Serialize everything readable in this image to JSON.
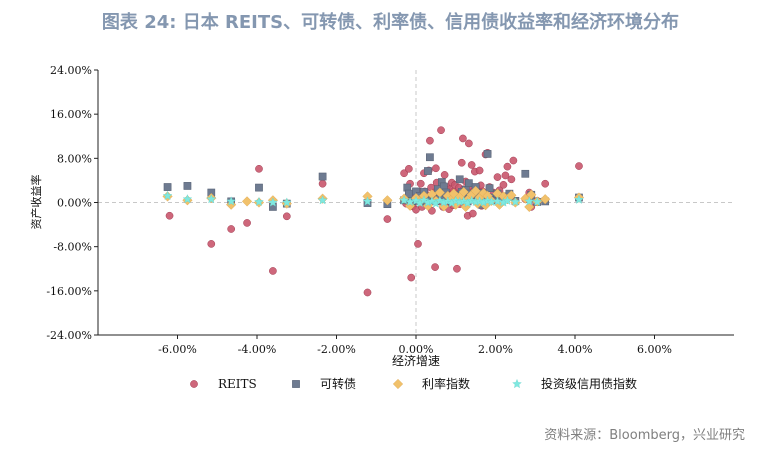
{
  "title": "图表 24: 日本 REITS、可转债、利率债、信用债收益率和经济环境分布",
  "source": "资料来源：Bloomberg，兴业研究",
  "chart_data": {
    "type": "scatter",
    "xlabel": "经济增速",
    "ylabel": "资产收益率",
    "xlim": [
      -0.08,
      0.08
    ],
    "ylim": [
      -0.24,
      0.24
    ],
    "x_ticks": [
      -0.06,
      -0.04,
      -0.02,
      0.0,
      0.02,
      0.04,
      0.06
    ],
    "x_tick_labels": [
      "-6.00%",
      "-4.00%",
      "-2.00%",
      "0.00%",
      "2.00%",
      "4.00%",
      "6.00%"
    ],
    "y_ticks": [
      -0.24,
      -0.16,
      -0.08,
      0.0,
      0.08,
      0.16,
      0.24
    ],
    "y_tick_labels": [
      "-24.00%",
      "-16.00%",
      "-8.00%",
      "0.00%",
      "8.00%",
      "16.00%",
      "24.00%"
    ],
    "legend_position": "bottom",
    "series": [
      {
        "name": "REITS",
        "marker": "circle",
        "color": "#c9566d",
        "points": [
          [
            -0.062,
            -0.024
          ],
          [
            -0.0515,
            -0.075
          ],
          [
            -0.0465,
            -0.048
          ],
          [
            -0.0425,
            -0.037
          ],
          [
            -0.0395,
            0.061
          ],
          [
            -0.036,
            -0.124
          ],
          [
            -0.0325,
            -0.025
          ],
          [
            -0.0235,
            0.034
          ],
          [
            -0.0122,
            -0.163
          ],
          [
            -0.0072,
            -0.03
          ],
          [
            -0.003,
            0.053
          ],
          [
            -0.0025,
            -0.002
          ],
          [
            -0.0018,
            0.061
          ],
          [
            -0.0015,
            0.034
          ],
          [
            -0.001,
            0.011
          ],
          [
            -0.0008,
            -0.007
          ],
          [
            -0.0005,
            0.013
          ],
          [
            0.0,
            -0.013
          ],
          [
            0.0005,
            -0.075
          ],
          [
            -0.0012,
            -0.136
          ],
          [
            0.0008,
            0.02
          ],
          [
            0.001,
            0.005
          ],
          [
            0.0012,
            0.034
          ],
          [
            0.0015,
            -0.008
          ],
          [
            0.002,
            0.053
          ],
          [
            0.0022,
            0.02
          ],
          [
            0.0025,
            0.003
          ],
          [
            0.003,
            0.012
          ],
          [
            0.0032,
            0.058
          ],
          [
            0.0035,
            0.112
          ],
          [
            0.0038,
            0.027
          ],
          [
            0.004,
            -0.015
          ],
          [
            0.0042,
            0.004
          ],
          [
            0.0045,
            0.018
          ],
          [
            0.0048,
            -0.117
          ],
          [
            0.005,
            0.062
          ],
          [
            0.0052,
            0.036
          ],
          [
            0.0055,
            0.002
          ],
          [
            0.0058,
            0.01
          ],
          [
            0.006,
            0.021
          ],
          [
            0.0063,
            0.131
          ],
          [
            0.0065,
            0.036
          ],
          [
            0.0068,
            -0.008
          ],
          [
            0.007,
            0.017
          ],
          [
            0.0072,
            0.05
          ],
          [
            0.0075,
            0.008
          ],
          [
            0.0078,
            0.028
          ],
          [
            0.008,
            0.002
          ],
          [
            0.0083,
            -0.012
          ],
          [
            0.0085,
            0.024
          ],
          [
            0.0088,
            0.014
          ],
          [
            0.009,
            0.036
          ],
          [
            0.0093,
            -0.005
          ],
          [
            0.0095,
            0.02
          ],
          [
            0.0098,
            0.032
          ],
          [
            0.01,
            0.008
          ],
          [
            0.0103,
            -0.12
          ],
          [
            0.0105,
            0.017
          ],
          [
            0.0108,
            0.027
          ],
          [
            0.011,
            -0.003
          ],
          [
            0.0113,
            0.012
          ],
          [
            0.0115,
            0.072
          ],
          [
            0.0118,
            0.116
          ],
          [
            0.012,
            0.024
          ],
          [
            0.0123,
            0.005
          ],
          [
            0.0125,
            0.038
          ],
          [
            0.0128,
            0.016
          ],
          [
            0.013,
            -0.024
          ],
          [
            0.0133,
            0.107
          ],
          [
            0.0135,
            0.03
          ],
          [
            0.0138,
            0.011
          ],
          [
            0.014,
            0.068
          ],
          [
            0.0143,
            -0.02
          ],
          [
            0.0145,
            0.021
          ],
          [
            0.0148,
            0.056
          ],
          [
            0.015,
            0.002
          ],
          [
            0.0153,
            0.027
          ],
          [
            0.0155,
            0.008
          ],
          [
            0.0158,
            0.016
          ],
          [
            0.016,
            0.058
          ],
          [
            0.0163,
            0.031
          ],
          [
            0.0165,
            -0.006
          ],
          [
            0.0168,
            0.02
          ],
          [
            0.017,
            0.011
          ],
          [
            0.0175,
            0.087
          ],
          [
            0.018,
            0.09
          ],
          [
            0.0185,
            0.028
          ],
          [
            0.019,
            0.003
          ],
          [
            0.0195,
            0.018
          ],
          [
            0.0205,
            0.046
          ],
          [
            0.021,
            0.022
          ],
          [
            0.0215,
            0.008
          ],
          [
            0.022,
            0.032
          ],
          [
            0.0225,
            0.049
          ],
          [
            0.023,
            0.065
          ],
          [
            0.0235,
            0.012
          ],
          [
            0.024,
            0.042
          ],
          [
            0.0245,
            0.076
          ],
          [
            0.025,
            0.003
          ],
          [
            0.0275,
            0.006
          ],
          [
            0.0285,
            0.018
          ],
          [
            0.029,
            -0.008
          ],
          [
            0.0305,
            0.003
          ],
          [
            0.0325,
            0.034
          ],
          [
            0.041,
            0.066
          ]
        ]
      },
      {
        "name": "可转债",
        "marker": "square",
        "color": "#6e7b91",
        "points": [
          [
            -0.0625,
            0.028
          ],
          [
            -0.0575,
            0.03
          ],
          [
            -0.0515,
            0.018
          ],
          [
            -0.0465,
            0.002
          ],
          [
            -0.0395,
            0.027
          ],
          [
            -0.036,
            -0.008
          ],
          [
            -0.0325,
            -0.002
          ],
          [
            -0.0235,
            0.047
          ],
          [
            -0.0122,
            -0.001
          ],
          [
            -0.0072,
            -0.003
          ],
          [
            -0.003,
            0.004
          ],
          [
            -0.0022,
            0.027
          ],
          [
            -0.0018,
            0.016
          ],
          [
            -0.001,
            0.002
          ],
          [
            0.0,
            0.02
          ],
          [
            0.0005,
            0.003
          ],
          [
            0.001,
            0.012
          ],
          [
            0.0015,
            0.002
          ],
          [
            0.002,
            0.019
          ],
          [
            0.0025,
            0.006
          ],
          [
            0.003,
            0.057
          ],
          [
            0.0035,
            0.082
          ],
          [
            0.004,
            0.005
          ],
          [
            0.0045,
            0.004
          ],
          [
            0.005,
            0.003
          ],
          [
            0.0055,
            0.024
          ],
          [
            0.006,
            0.008
          ],
          [
            0.0065,
            0.037
          ],
          [
            0.007,
            0.029
          ],
          [
            0.0075,
            0.018
          ],
          [
            0.008,
            0.004
          ],
          [
            0.0085,
            0.008
          ],
          [
            0.009,
            0.002
          ],
          [
            0.0095,
            0.01
          ],
          [
            0.01,
            0.014
          ],
          [
            0.0105,
            0.003
          ],
          [
            0.011,
            0.042
          ],
          [
            0.0115,
            0.019
          ],
          [
            0.012,
            0.008
          ],
          [
            0.0125,
            0.023
          ],
          [
            0.013,
            0.002
          ],
          [
            0.0133,
            0.035
          ],
          [
            0.0135,
            0.016
          ],
          [
            0.014,
            0.006
          ],
          [
            0.0145,
            0.011
          ],
          [
            0.015,
            0.028
          ],
          [
            0.0155,
            0.003
          ],
          [
            0.016,
            0.017
          ],
          [
            0.0165,
            -0.004
          ],
          [
            0.017,
            0.013
          ],
          [
            0.0175,
            0.008
          ],
          [
            0.018,
            0.088
          ],
          [
            0.0185,
            0.026
          ],
          [
            0.019,
            0.009
          ],
          [
            0.0195,
            0.004
          ],
          [
            0.0205,
            0.016
          ],
          [
            0.021,
            0.006
          ],
          [
            0.0215,
            0.002
          ],
          [
            0.0225,
            0.011
          ],
          [
            0.0235,
            0.016
          ],
          [
            0.025,
            0.003
          ],
          [
            0.0275,
            0.052
          ],
          [
            0.0285,
            0.007
          ],
          [
            0.029,
            0.014
          ],
          [
            0.0305,
            0.001
          ],
          [
            0.0325,
            0.002
          ],
          [
            0.041,
            0.009
          ]
        ]
      },
      {
        "name": "利率指数",
        "marker": "diamond",
        "color": "#f1c16b",
        "points": [
          [
            -0.0625,
            0.011
          ],
          [
            -0.0575,
            0.004
          ],
          [
            -0.0515,
            0.008
          ],
          [
            -0.0465,
            -0.004
          ],
          [
            -0.0425,
            0.002
          ],
          [
            -0.0395,
            0.0
          ],
          [
            -0.036,
            0.004
          ],
          [
            -0.0325,
            -0.002
          ],
          [
            -0.0235,
            0.007
          ],
          [
            -0.0122,
            0.011
          ],
          [
            -0.0072,
            0.004
          ],
          [
            -0.003,
            0.007
          ],
          [
            -0.0015,
            -0.006
          ],
          [
            0.0,
            0.008
          ],
          [
            0.001,
            0.002
          ],
          [
            0.002,
            0.012
          ],
          [
            0.003,
            -0.006
          ],
          [
            0.004,
            0.015
          ],
          [
            0.005,
            0.003
          ],
          [
            0.006,
            0.018
          ],
          [
            0.007,
            -0.007
          ],
          [
            0.008,
            0.012
          ],
          [
            0.009,
            0.006
          ],
          [
            0.0095,
            0.016
          ],
          [
            0.01,
            -0.004
          ],
          [
            0.011,
            0.01
          ],
          [
            0.012,
            0.019
          ],
          [
            0.0125,
            -0.008
          ],
          [
            0.013,
            0.005
          ],
          [
            0.014,
            0.014
          ],
          [
            0.015,
            0.021
          ],
          [
            0.0155,
            -0.002
          ],
          [
            0.016,
            0.009
          ],
          [
            0.017,
            0.017
          ],
          [
            0.0175,
            -0.005
          ],
          [
            0.018,
            0.012
          ],
          [
            0.019,
            0.003
          ],
          [
            0.0205,
            0.016
          ],
          [
            0.021,
            -0.004
          ],
          [
            0.022,
            0.011
          ],
          [
            0.023,
            0.006
          ],
          [
            0.024,
            0.013
          ],
          [
            0.025,
            0.0
          ],
          [
            0.0275,
            0.007
          ],
          [
            0.0285,
            -0.008
          ],
          [
            0.029,
            0.014
          ],
          [
            0.0305,
            0.002
          ],
          [
            0.0325,
            0.006
          ],
          [
            0.041,
            0.009
          ]
        ]
      },
      {
        "name": "投资级信用债指数",
        "marker": "star",
        "color": "#7fe8e0",
        "points": [
          [
            -0.0625,
            0.012
          ],
          [
            -0.0575,
            0.006
          ],
          [
            -0.0515,
            0.006
          ],
          [
            -0.0465,
            0.002
          ],
          [
            -0.0395,
            0.001
          ],
          [
            -0.036,
            0.0
          ],
          [
            -0.0325,
            0.0
          ],
          [
            -0.0235,
            0.004
          ],
          [
            -0.0122,
            0.002
          ],
          [
            -0.003,
            0.004
          ],
          [
            -0.0015,
            0.001
          ],
          [
            0.0,
            0.003
          ],
          [
            0.001,
            -0.001
          ],
          [
            0.002,
            0.004
          ],
          [
            0.003,
            0.0
          ],
          [
            0.004,
            0.002
          ],
          [
            0.005,
            -0.002
          ],
          [
            0.006,
            0.003
          ],
          [
            0.007,
            0.0
          ],
          [
            0.008,
            0.002
          ],
          [
            0.009,
            -0.001
          ],
          [
            0.01,
            0.003
          ],
          [
            0.011,
            0.001
          ],
          [
            0.012,
            0.002
          ],
          [
            0.013,
            -0.001
          ],
          [
            0.014,
            0.003
          ],
          [
            0.015,
            0.001
          ],
          [
            0.016,
            0.002
          ],
          [
            0.017,
            0.0
          ],
          [
            0.018,
            0.003
          ],
          [
            0.019,
            0.001
          ],
          [
            0.0205,
            0.002
          ],
          [
            0.022,
            0.0
          ],
          [
            0.023,
            0.003
          ],
          [
            0.025,
            0.001
          ],
          [
            0.0285,
            0.002
          ],
          [
            0.0305,
            0.001
          ],
          [
            0.041,
            0.005
          ]
        ]
      }
    ]
  }
}
